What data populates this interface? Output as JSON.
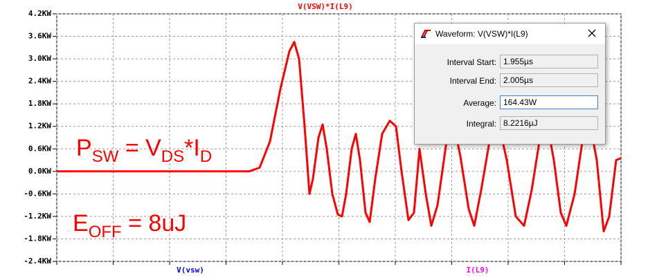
{
  "chart_data": {
    "type": "line",
    "title": "V(VSW)*I(L9)",
    "title_color": "#ff0000",
    "x": [
      0,
      278,
      293,
      308,
      323,
      336,
      343,
      350,
      358,
      365,
      370,
      378,
      384,
      390,
      398,
      406,
      412,
      418,
      426,
      432,
      438,
      446,
      452,
      460,
      470,
      481,
      490,
      498,
      508,
      516,
      524,
      533,
      541,
      550,
      563,
      573,
      583,
      595,
      603,
      613,
      626,
      638,
      650,
      663,
      675,
      686,
      698,
      708,
      718,
      728,
      736,
      748,
      760,
      770,
      780,
      790,
      798,
      808,
      815
    ],
    "series": [
      {
        "color": "#ff0000",
        "values": [
          0,
          0,
          0.1,
          0.8,
          2.2,
          3.2,
          3.45,
          3.0,
          1.2,
          -0.6,
          -0.2,
          0.9,
          1.25,
          0.6,
          -0.6,
          -1.15,
          -1.2,
          -0.6,
          0.6,
          1.0,
          0.3,
          -1.1,
          -1.35,
          -0.2,
          1.0,
          1.35,
          1.2,
          0.0,
          -1.3,
          -1.1,
          0.6,
          -0.6,
          -1.45,
          -0.9,
          0.8,
          1.3,
          0.4,
          -1.0,
          -1.45,
          -0.5,
          0.9,
          1.3,
          0.3,
          -1.2,
          -1.45,
          -0.5,
          0.9,
          1.3,
          0.3,
          -1.1,
          -1.45,
          -0.6,
          0.9,
          1.3,
          0.3,
          -1.6,
          -1.2,
          0.3,
          0.35
        ]
      }
    ],
    "xlim": [
      0,
      815
    ],
    "xticks": [
      0,
      81.5,
      163,
      244.5,
      326,
      407.5,
      489,
      570.5,
      652,
      733.5,
      815
    ],
    "ylim": [
      -2.4,
      4.2
    ],
    "yticks": [
      {
        "value": -2.4,
        "label": "-2.4KW"
      },
      {
        "value": -1.8,
        "label": "-1.8KW"
      },
      {
        "value": -1.2,
        "label": "-1.2KW"
      },
      {
        "value": -0.6,
        "label": "-0.6KW"
      },
      {
        "value": 0,
        "label": "0.0KW"
      },
      {
        "value": 0.6,
        "label": "0.6KW"
      },
      {
        "value": 1.2,
        "label": "1.2KW"
      },
      {
        "value": 1.8,
        "label": "1.8KW"
      },
      {
        "value": 2.4,
        "label": "2.4KW"
      },
      {
        "value": 3.0,
        "label": "3.0KW"
      },
      {
        "value": 3.6,
        "label": "3.6KW"
      },
      {
        "value": 4.2,
        "label": "4.2KW"
      }
    ],
    "grid": true,
    "trace_labels": [
      {
        "text": "V(vsw)",
        "color": "#0000ff"
      },
      {
        "text": "I(L9)",
        "color": "#ff00ff"
      }
    ],
    "annotations": [
      {
        "parts": [
          "P",
          "SW",
          " = V",
          "DS",
          "*I",
          "D"
        ],
        "color": "#ff0000"
      },
      {
        "parts": [
          "E",
          "OFF",
          " = 8uJ"
        ],
        "color": "#ff0000"
      }
    ]
  },
  "dialog": {
    "title": "Waveform: V(VSW)*I(L9)",
    "rows": [
      {
        "label": "Interval Start:",
        "value": "1.955µs"
      },
      {
        "label": "Interval End:",
        "value": "2.005µs"
      },
      {
        "label": "Average:",
        "value": "164.43W"
      },
      {
        "label": "Integral:",
        "value": "8.2216µJ"
      }
    ]
  }
}
